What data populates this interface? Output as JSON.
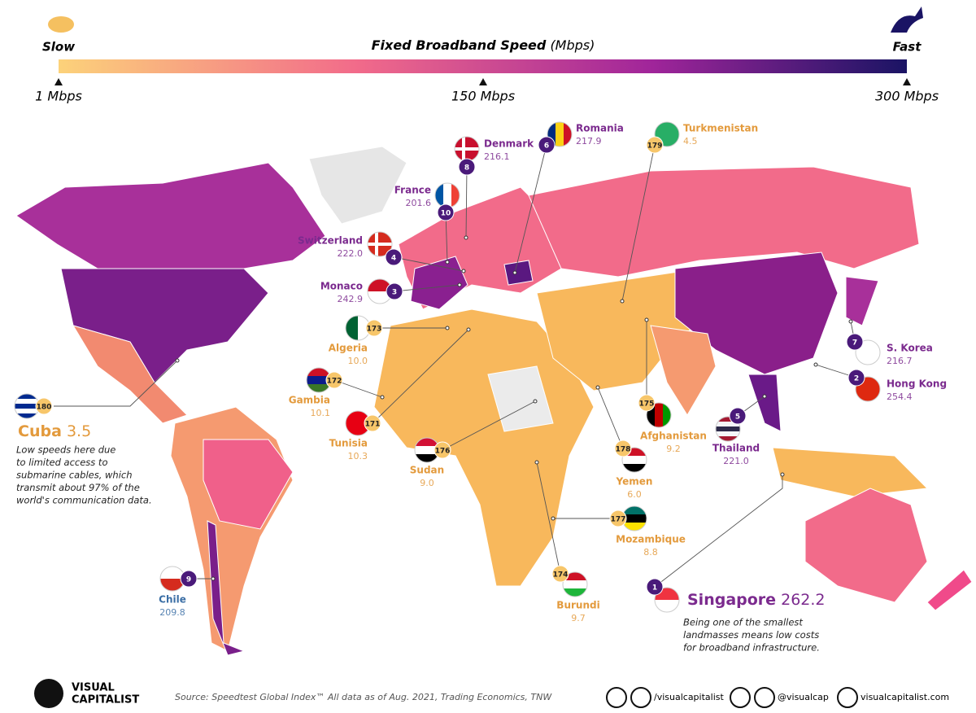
{
  "legend": {
    "slow": "Slow",
    "fast": "Fast",
    "title": "Fixed Broadband Speed",
    "unit": "(Mbps)",
    "ticks": [
      "1 Mbps",
      "150 Mbps",
      "300 Mbps"
    ]
  },
  "countries": [
    {
      "rank": "8",
      "name": "Denmark",
      "speed": "216.1"
    },
    {
      "rank": "6",
      "name": "Romania",
      "speed": "217.9"
    },
    {
      "rank": "179",
      "name": "Turkmenistan",
      "speed": "4.5"
    },
    {
      "rank": "10",
      "name": "France",
      "speed": "201.6"
    },
    {
      "rank": "4",
      "name": "Switzerland",
      "speed": "222.0"
    },
    {
      "rank": "3",
      "name": "Monaco",
      "speed": "242.9"
    },
    {
      "rank": "173",
      "name": "Algeria",
      "speed": "10.0"
    },
    {
      "rank": "172",
      "name": "Gambia",
      "speed": "10.1"
    },
    {
      "rank": "171",
      "name": "Tunisia",
      "speed": "10.3"
    },
    {
      "rank": "176",
      "name": "Sudan",
      "speed": "9.0"
    },
    {
      "rank": "178",
      "name": "Yemen",
      "speed": "6.0"
    },
    {
      "rank": "175",
      "name": "Afghanistan",
      "speed": "9.2"
    },
    {
      "rank": "5",
      "name": "Thailand",
      "speed": "221.0"
    },
    {
      "rank": "7",
      "name": "S. Korea",
      "speed": "216.7"
    },
    {
      "rank": "2",
      "name": "Hong Kong",
      "speed": "254.4"
    },
    {
      "rank": "177",
      "name": "Mozambique",
      "speed": "8.8"
    },
    {
      "rank": "174",
      "name": "Burundi",
      "speed": "9.7"
    },
    {
      "rank": "9",
      "name": "Chile",
      "speed": "209.8"
    },
    {
      "rank": "180",
      "name": "Cuba",
      "speed": "3.5",
      "note": [
        "Low speeds here due",
        "to limited access to",
        "submarine cables, which",
        "transmit about 97% of the",
        "world's communication data."
      ]
    },
    {
      "rank": "1",
      "name": "Singapore",
      "speed": "262.2",
      "note": [
        "Being one of the smallest",
        "landmasses means low costs",
        "for broadband infrastructure."
      ]
    }
  ],
  "footer": {
    "logo": [
      "VISUAL",
      "CAPITALIST"
    ],
    "source": "Source: Speedtest Global Index™ All data as of Aug. 2021, Trading Economics, TNW",
    "social": [
      "/visualcapitalist",
      "@visualcap",
      "visualcapitalist.com"
    ]
  }
}
